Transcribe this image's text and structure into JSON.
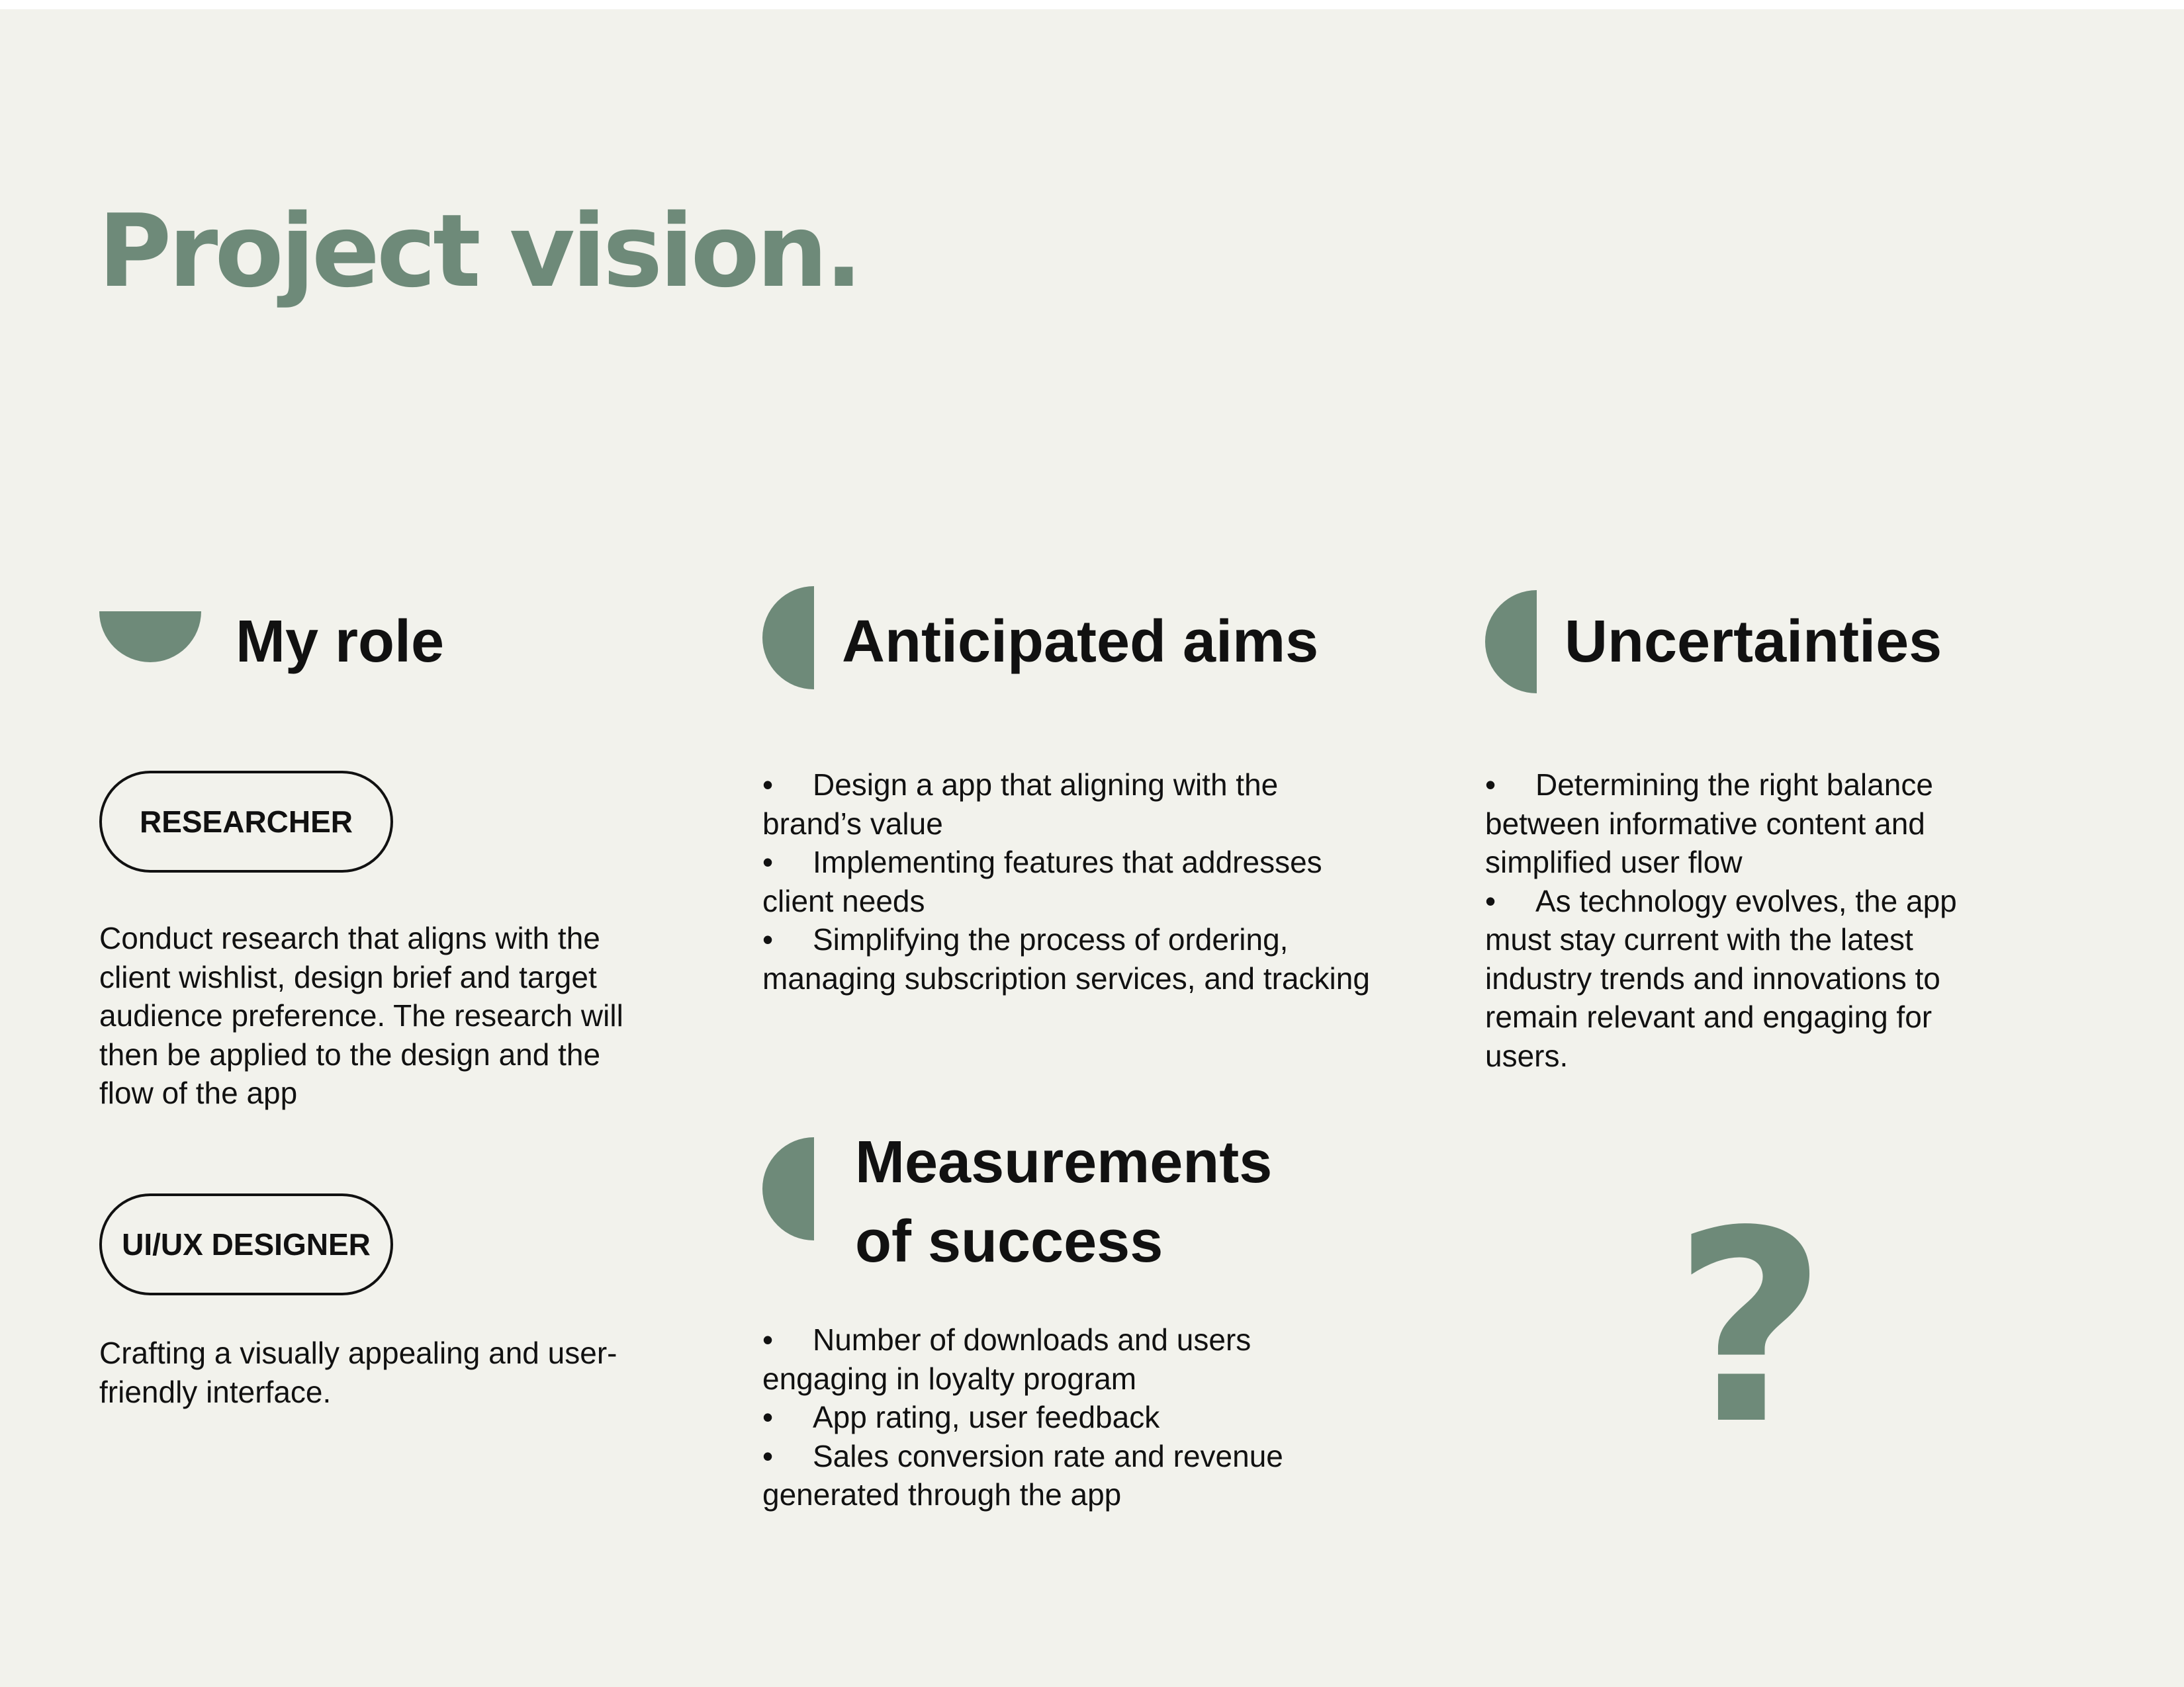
{
  "page": {
    "title": "Project vision.",
    "accent_color": "#6e8a79",
    "background_color": "#f2f2ec"
  },
  "my_role": {
    "heading": "My role",
    "icon": "half-circle-icon",
    "roles": [
      {
        "label": "RESEARCHER",
        "description": "Conduct research that aligns with the client wishlist, design brief and target audience preference. The research will then be applied to the design and the flow of the app"
      },
      {
        "label": "UI/UX DESIGNER",
        "description": "Crafting a visually appealing and user-friendly interface."
      }
    ]
  },
  "anticipated_aims": {
    "heading": "Anticipated aims",
    "icon": "half-circle-icon",
    "bullet": "•",
    "items": [
      "Design a app that aligning with the brand’s value",
      "Implementing features that addresses client needs",
      "Simplifying the process of ordering, managing subscription services, and tracking"
    ]
  },
  "measurements": {
    "heading_line1": "Measurements",
    "heading_line2": "of success",
    "icon": "half-circle-icon",
    "bullet": "•",
    "items": [
      "Number of downloads and users engaging in loyalty program",
      "App rating, user feedback",
      "Sales conversion rate and revenue generated through the app"
    ]
  },
  "uncertainties": {
    "heading": "Uncertainties",
    "icon": "half-circle-icon",
    "bullet": "•",
    "items": [
      "Determining the right balance between informative content and simplified user flow",
      "As technology evolves, the app must stay current with the latest industry trends and innovations to remain relevant and engaging for users."
    ],
    "decoration": "?",
    "decoration_icon": "question-mark-icon"
  }
}
